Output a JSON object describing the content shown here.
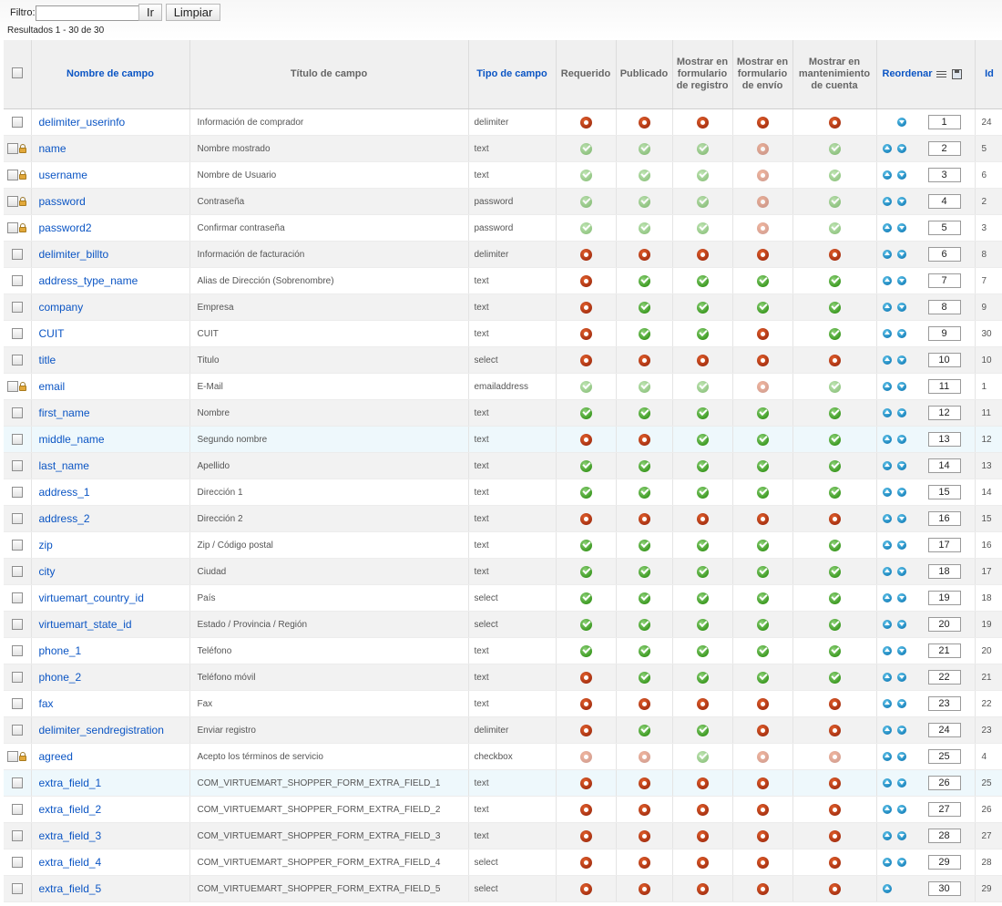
{
  "filter": {
    "label": "Filtro:",
    "value": "",
    "go_label": "Ir",
    "clear_label": "Limpiar"
  },
  "results_text": "Resultados 1 - 30 de 30",
  "headers": {
    "name": "Nombre de campo",
    "title": "Título de campo",
    "type": "Tipo de campo",
    "required": "Requerido",
    "published": "Publicado",
    "registration": "Mostrar en formulario de registro",
    "shipment": "Mostrar en formulario de envío",
    "account": "Mostrar en mantenimiento de cuenta",
    "reorder": "Reordenar",
    "id": "Id"
  },
  "status_colors": {
    "on": "#3d9a22",
    "off": "#a83212",
    "link": "#0b55c4"
  },
  "rows": [
    {
      "name": "delimiter_userinfo",
      "title": "Información de comprador",
      "type": "delimiter",
      "locked": false,
      "status": [
        "off",
        "off",
        "off",
        "off",
        "off"
      ],
      "dim": false,
      "order": "1",
      "id": "24",
      "up": false,
      "down": true
    },
    {
      "name": "name",
      "title": "Nombre mostrado",
      "type": "text",
      "locked": true,
      "status": [
        "on",
        "on",
        "on",
        "off",
        "on"
      ],
      "dim": true,
      "order": "2",
      "id": "5",
      "up": true,
      "down": true
    },
    {
      "name": "username",
      "title": "Nombre de Usuario",
      "type": "text",
      "locked": true,
      "status": [
        "on",
        "on",
        "on",
        "off",
        "on"
      ],
      "dim": true,
      "order": "3",
      "id": "6",
      "up": true,
      "down": true
    },
    {
      "name": "password",
      "title": "Contraseña",
      "type": "password",
      "locked": true,
      "status": [
        "on",
        "on",
        "on",
        "off",
        "on"
      ],
      "dim": true,
      "order": "4",
      "id": "2",
      "up": true,
      "down": true
    },
    {
      "name": "password2",
      "title": "Confirmar contraseña",
      "type": "password",
      "locked": true,
      "status": [
        "on",
        "on",
        "on",
        "off",
        "on"
      ],
      "dim": true,
      "order": "5",
      "id": "3",
      "up": true,
      "down": true
    },
    {
      "name": "delimiter_billto",
      "title": "Información de facturación",
      "type": "delimiter",
      "locked": false,
      "status": [
        "off",
        "off",
        "off",
        "off",
        "off"
      ],
      "dim": false,
      "order": "6",
      "id": "8",
      "up": true,
      "down": true
    },
    {
      "name": "address_type_name",
      "title": "Alias de Dirección (Sobrenombre)",
      "type": "text",
      "locked": false,
      "status": [
        "off",
        "on",
        "on",
        "on",
        "on"
      ],
      "dim": false,
      "order": "7",
      "id": "7",
      "up": true,
      "down": true
    },
    {
      "name": "company",
      "title": "Empresa",
      "type": "text",
      "locked": false,
      "status": [
        "off",
        "on",
        "on",
        "on",
        "on"
      ],
      "dim": false,
      "order": "8",
      "id": "9",
      "up": true,
      "down": true
    },
    {
      "name": "CUIT",
      "title": "CUIT",
      "type": "text",
      "locked": false,
      "status": [
        "off",
        "on",
        "on",
        "off",
        "on"
      ],
      "dim": false,
      "order": "9",
      "id": "30",
      "up": true,
      "down": true
    },
    {
      "name": "title",
      "title": "Titulo",
      "type": "select",
      "locked": false,
      "status": [
        "off",
        "off",
        "off",
        "off",
        "off"
      ],
      "dim": false,
      "order": "10",
      "id": "10",
      "up": true,
      "down": true
    },
    {
      "name": "email",
      "title": "E-Mail",
      "type": "emailaddress",
      "locked": true,
      "status": [
        "on",
        "on",
        "on",
        "off",
        "on"
      ],
      "dim": true,
      "order": "11",
      "id": "1",
      "up": true,
      "down": true
    },
    {
      "name": "first_name",
      "title": "Nombre",
      "type": "text",
      "locked": false,
      "status": [
        "on",
        "on",
        "on",
        "on",
        "on"
      ],
      "dim": false,
      "order": "12",
      "id": "11",
      "up": true,
      "down": true
    },
    {
      "name": "middle_name",
      "title": "Segundo nombre",
      "type": "text",
      "locked": false,
      "status": [
        "off",
        "off",
        "on",
        "on",
        "on"
      ],
      "dim": false,
      "order": "13",
      "id": "12",
      "up": true,
      "down": true,
      "highlight": true
    },
    {
      "name": "last_name",
      "title": "Apellido",
      "type": "text",
      "locked": false,
      "status": [
        "on",
        "on",
        "on",
        "on",
        "on"
      ],
      "dim": false,
      "order": "14",
      "id": "13",
      "up": true,
      "down": true
    },
    {
      "name": "address_1",
      "title": "Dirección 1",
      "type": "text",
      "locked": false,
      "status": [
        "on",
        "on",
        "on",
        "on",
        "on"
      ],
      "dim": false,
      "order": "15",
      "id": "14",
      "up": true,
      "down": true
    },
    {
      "name": "address_2",
      "title": "Dirección 2",
      "type": "text",
      "locked": false,
      "status": [
        "off",
        "off",
        "off",
        "off",
        "off"
      ],
      "dim": false,
      "order": "16",
      "id": "15",
      "up": true,
      "down": true
    },
    {
      "name": "zip",
      "title": "Zip / Código postal",
      "type": "text",
      "locked": false,
      "status": [
        "on",
        "on",
        "on",
        "on",
        "on"
      ],
      "dim": false,
      "order": "17",
      "id": "16",
      "up": true,
      "down": true
    },
    {
      "name": "city",
      "title": "Ciudad",
      "type": "text",
      "locked": false,
      "status": [
        "on",
        "on",
        "on",
        "on",
        "on"
      ],
      "dim": false,
      "order": "18",
      "id": "17",
      "up": true,
      "down": true
    },
    {
      "name": "virtuemart_country_id",
      "title": "País",
      "type": "select",
      "locked": false,
      "status": [
        "on",
        "on",
        "on",
        "on",
        "on"
      ],
      "dim": false,
      "order": "19",
      "id": "18",
      "up": true,
      "down": true
    },
    {
      "name": "virtuemart_state_id",
      "title": "Estado / Provincia / Región",
      "type": "select",
      "locked": false,
      "status": [
        "on",
        "on",
        "on",
        "on",
        "on"
      ],
      "dim": false,
      "order": "20",
      "id": "19",
      "up": true,
      "down": true
    },
    {
      "name": "phone_1",
      "title": "Teléfono",
      "type": "text",
      "locked": false,
      "status": [
        "on",
        "on",
        "on",
        "on",
        "on"
      ],
      "dim": false,
      "order": "21",
      "id": "20",
      "up": true,
      "down": true
    },
    {
      "name": "phone_2",
      "title": "Teléfono móvil",
      "type": "text",
      "locked": false,
      "status": [
        "off",
        "on",
        "on",
        "on",
        "on"
      ],
      "dim": false,
      "order": "22",
      "id": "21",
      "up": true,
      "down": true
    },
    {
      "name": "fax",
      "title": "Fax",
      "type": "text",
      "locked": false,
      "status": [
        "off",
        "off",
        "off",
        "off",
        "off"
      ],
      "dim": false,
      "order": "23",
      "id": "22",
      "up": true,
      "down": true
    },
    {
      "name": "delimiter_sendregistration",
      "title": "Enviar registro",
      "type": "delimiter",
      "locked": false,
      "status": [
        "off",
        "on",
        "on",
        "off",
        "off"
      ],
      "dim": false,
      "order": "24",
      "id": "23",
      "up": true,
      "down": true
    },
    {
      "name": "agreed",
      "title": "Acepto los términos de servicio",
      "type": "checkbox",
      "locked": true,
      "status": [
        "off",
        "off",
        "on",
        "off",
        "off"
      ],
      "dim": true,
      "order": "25",
      "id": "4",
      "up": true,
      "down": true
    },
    {
      "name": "extra_field_1",
      "title": "COM_VIRTUEMART_SHOPPER_FORM_EXTRA_FIELD_1",
      "type": "text",
      "locked": false,
      "status": [
        "off",
        "off",
        "off",
        "off",
        "off"
      ],
      "dim": false,
      "order": "26",
      "id": "25",
      "up": true,
      "down": true,
      "highlight": true
    },
    {
      "name": "extra_field_2",
      "title": "COM_VIRTUEMART_SHOPPER_FORM_EXTRA_FIELD_2",
      "type": "text",
      "locked": false,
      "status": [
        "off",
        "off",
        "off",
        "off",
        "off"
      ],
      "dim": false,
      "order": "27",
      "id": "26",
      "up": true,
      "down": true
    },
    {
      "name": "extra_field_3",
      "title": "COM_VIRTUEMART_SHOPPER_FORM_EXTRA_FIELD_3",
      "type": "text",
      "locked": false,
      "status": [
        "off",
        "off",
        "off",
        "off",
        "off"
      ],
      "dim": false,
      "order": "28",
      "id": "27",
      "up": true,
      "down": true
    },
    {
      "name": "extra_field_4",
      "title": "COM_VIRTUEMART_SHOPPER_FORM_EXTRA_FIELD_4",
      "type": "select",
      "locked": false,
      "status": [
        "off",
        "off",
        "off",
        "off",
        "off"
      ],
      "dim": false,
      "order": "29",
      "id": "28",
      "up": true,
      "down": true
    },
    {
      "name": "extra_field_5",
      "title": "COM_VIRTUEMART_SHOPPER_FORM_EXTRA_FIELD_5",
      "type": "select",
      "locked": false,
      "status": [
        "off",
        "off",
        "off",
        "off",
        "off"
      ],
      "dim": false,
      "order": "30",
      "id": "29",
      "up": true,
      "down": false
    }
  ]
}
